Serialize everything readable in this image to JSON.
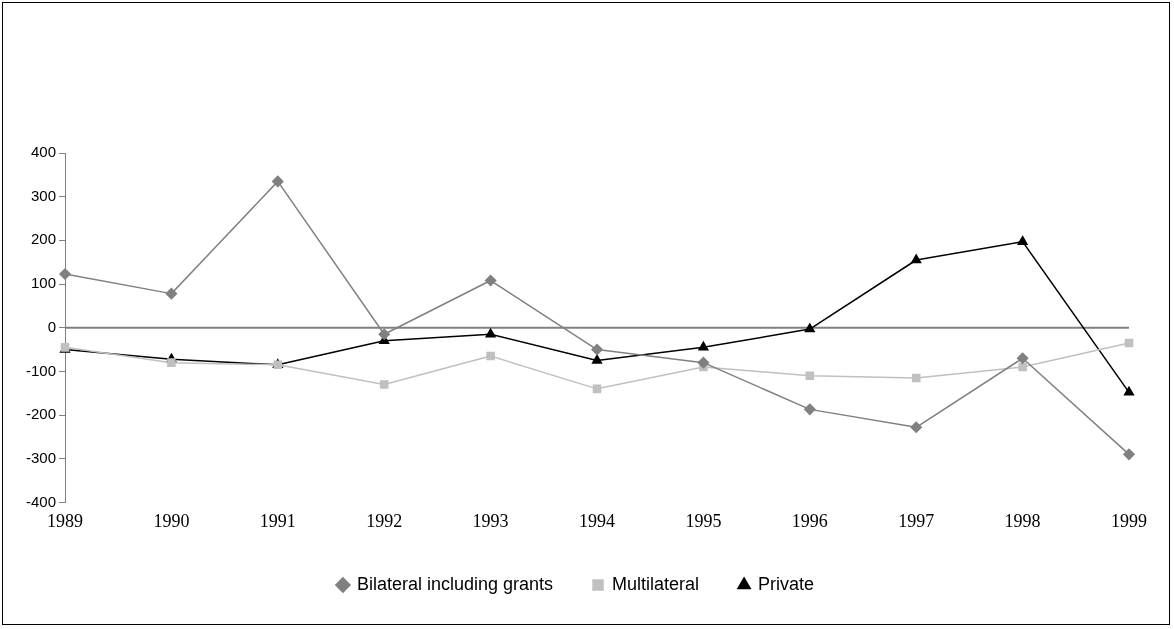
{
  "chart_data": {
    "type": "line",
    "categories": [
      "1989",
      "1990",
      "1991",
      "1992",
      "1993",
      "1994",
      "1995",
      "1996",
      "1997",
      "1998",
      "1999"
    ],
    "series": [
      {
        "name": "Bilateral including grants",
        "color": "#808080",
        "marker": "diamond",
        "values": [
          123,
          78,
          335,
          -15,
          108,
          -50,
          -80,
          -187,
          -228,
          -70,
          -290
        ]
      },
      {
        "name": "Multilateral",
        "color": "#c0c0c0",
        "marker": "square",
        "values": [
          -45,
          -80,
          -85,
          -130,
          -65,
          -140,
          -90,
          -110,
          -115,
          -90,
          -35
        ]
      },
      {
        "name": "Private",
        "color": "#000000",
        "marker": "triangle",
        "values": [
          -50,
          -72,
          -85,
          -30,
          -15,
          -75,
          -45,
          -3,
          155,
          197,
          -148
        ]
      }
    ],
    "ylim": [
      -400,
      400
    ],
    "yticks": [
      -400,
      -300,
      -200,
      -100,
      0,
      100,
      200,
      300,
      400
    ],
    "ref_lines": [
      {
        "axis": "y",
        "value": 0,
        "color": "#808080"
      }
    ],
    "grid": false,
    "legend": "bottom",
    "line_style": "solid"
  }
}
